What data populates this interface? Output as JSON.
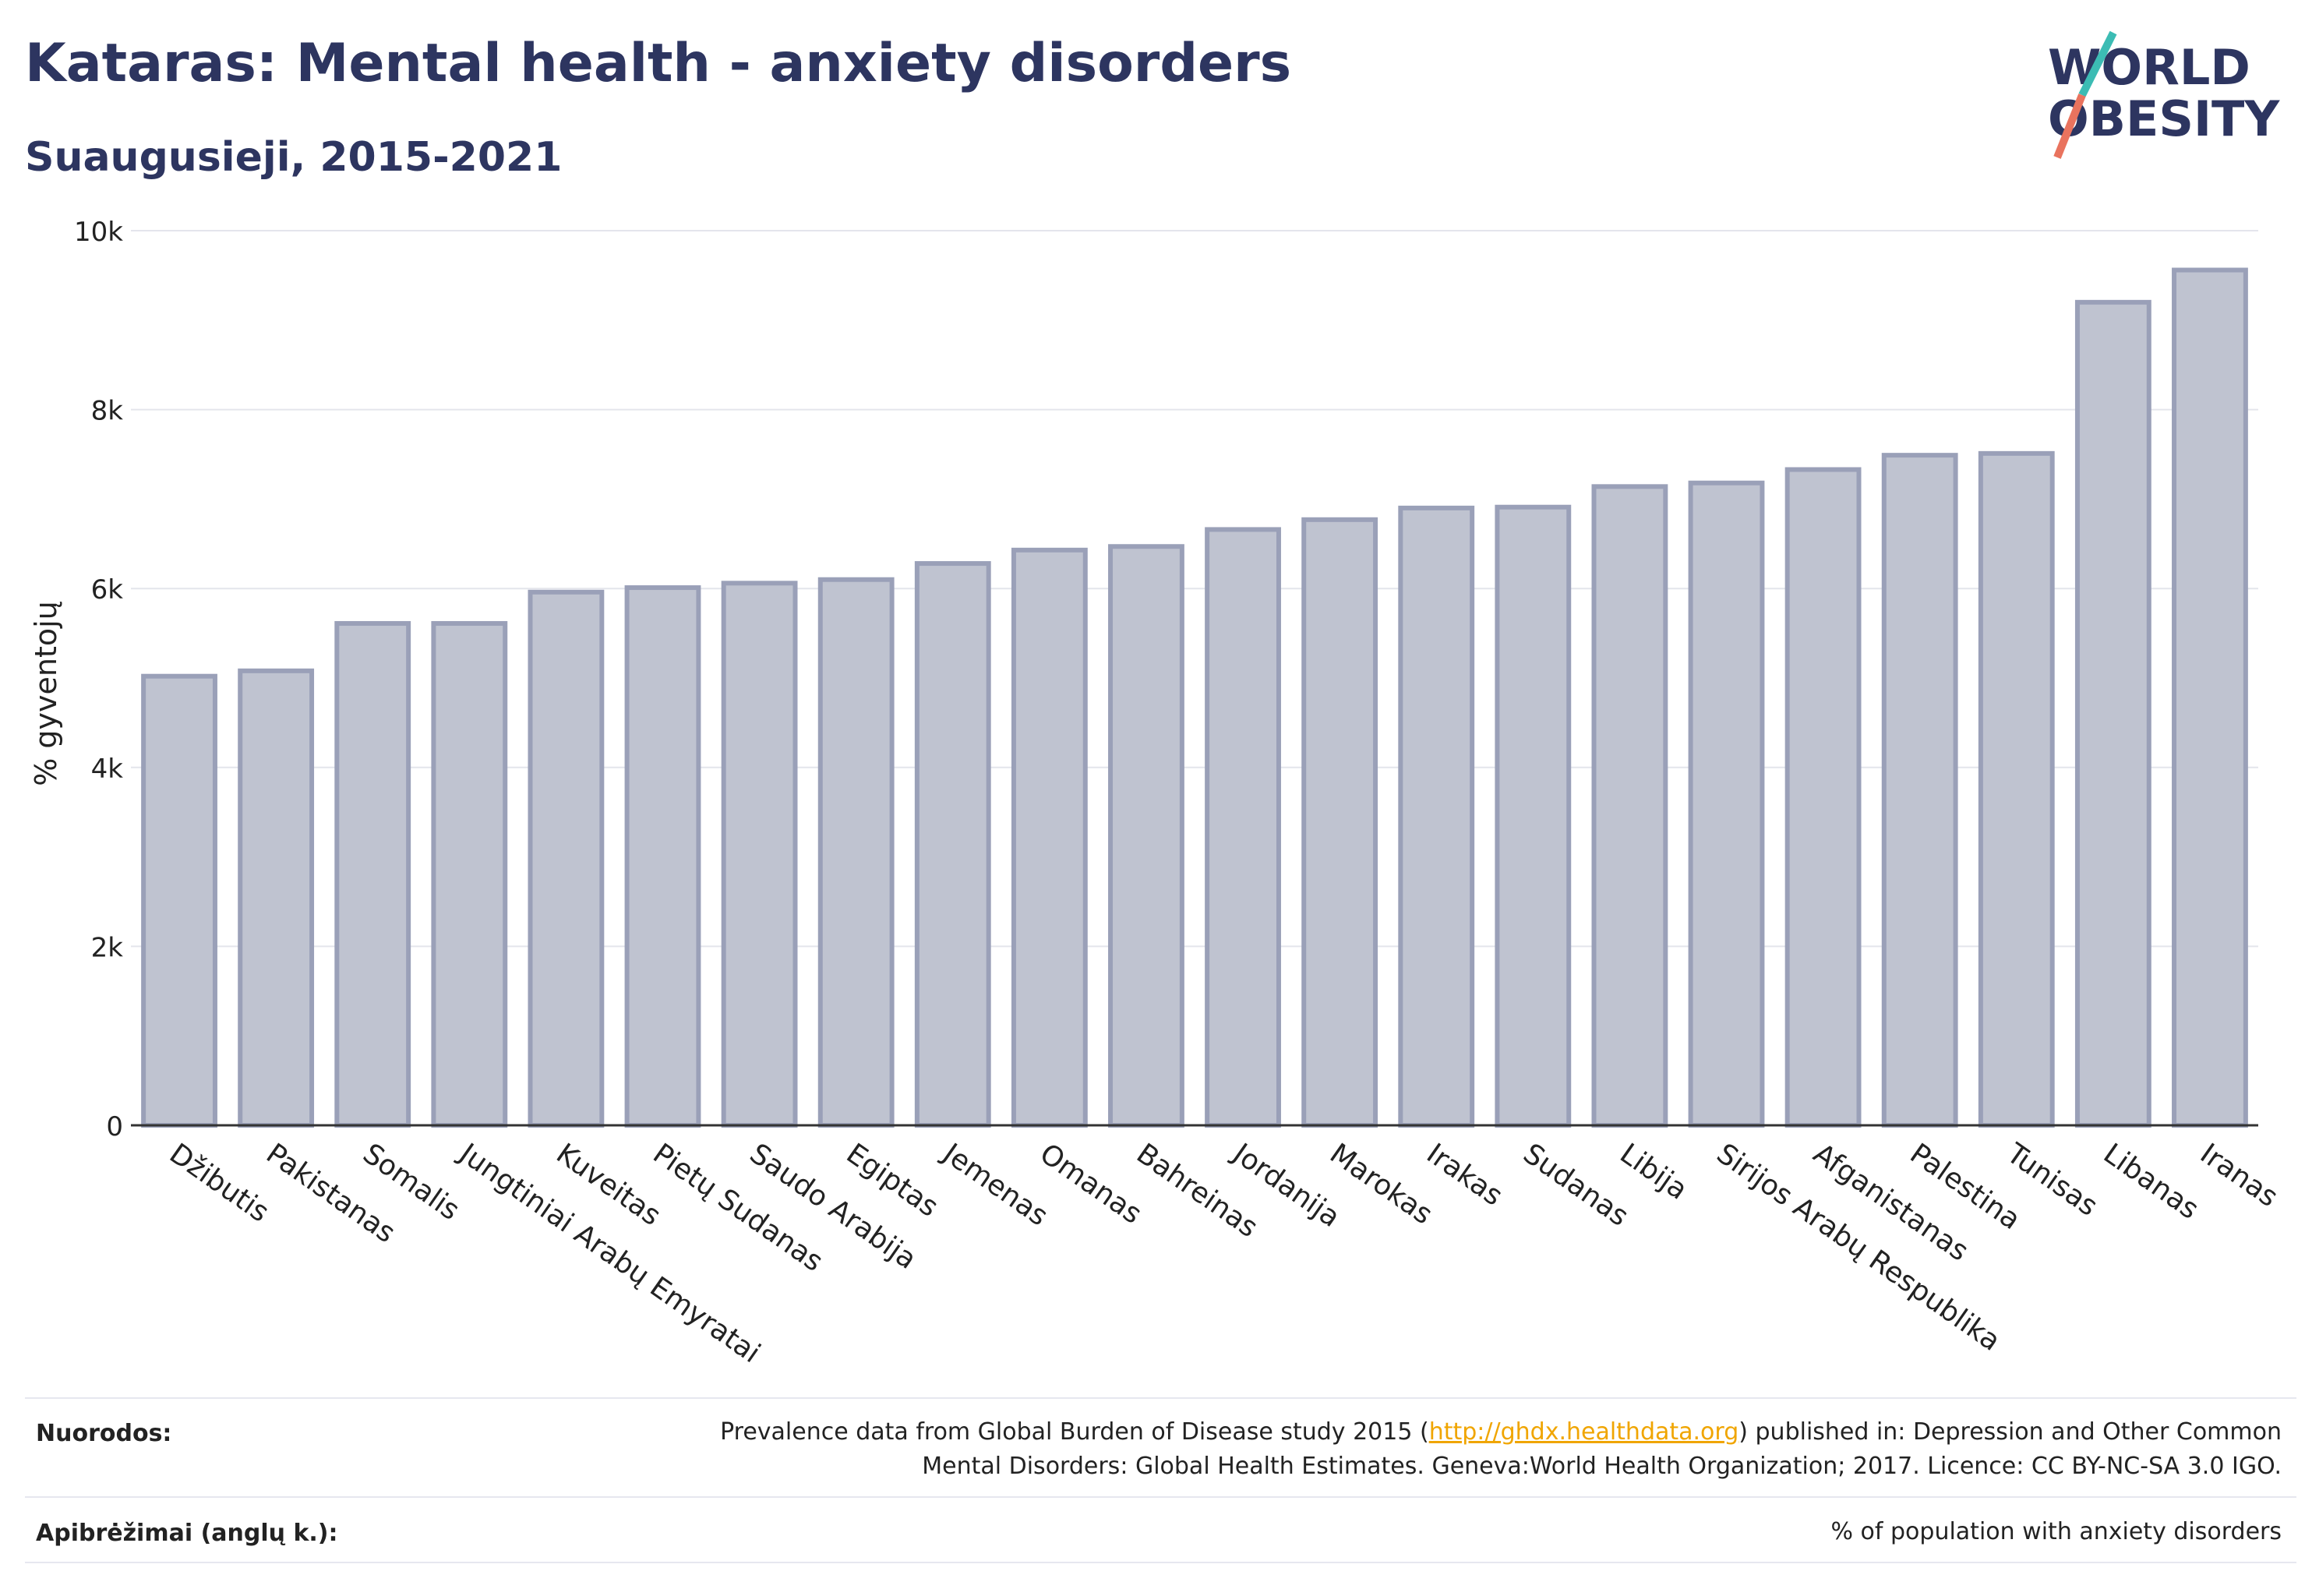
{
  "header": {
    "title": "Kataras: Mental health - anxiety disorders",
    "subtitle": "Suaugusieji, 2015-2021"
  },
  "logo": {
    "line1": "WORLD",
    "line2": "OBESITY",
    "colors": {
      "text": "#2d3560",
      "slash_teal": "#3cbcb4",
      "slash_coral": "#e9735e"
    }
  },
  "chart_data": {
    "type": "bar",
    "ylabel": "% gyventojų",
    "xlabel": "",
    "ylim": [
      0,
      10000
    ],
    "yticks": [
      {
        "value": 0,
        "label": "0"
      },
      {
        "value": 2000,
        "label": "2k"
      },
      {
        "value": 4000,
        "label": "4k"
      },
      {
        "value": 6000,
        "label": "6k"
      },
      {
        "value": 8000,
        "label": "8k"
      },
      {
        "value": 10000,
        "label": "10k"
      }
    ],
    "grid": true,
    "bar_color": "#bfc3d0",
    "bar_edge_color": "#9aa0b8",
    "categories": [
      "Džibutis",
      "Pakistanas",
      "Somalis",
      "Jungtiniai Arabų Emyratai",
      "Kuveitas",
      "Pietų Sudanas",
      "Saudo Arabija",
      "Egiptas",
      "Jemenas",
      "Omanas",
      "Bahreinas",
      "Jordanija",
      "Marokas",
      "Irakas",
      "Sudanas",
      "Libija",
      "Sirijos Arabų Respublika",
      "Afganistanas",
      "Palestina",
      "Tunisas",
      "Libanas",
      "Iranas"
    ],
    "values": [
      5020,
      5080,
      5610,
      5610,
      5960,
      6010,
      6060,
      6100,
      6280,
      6430,
      6470,
      6660,
      6770,
      6900,
      6910,
      7140,
      7180,
      7330,
      7490,
      7510,
      9200,
      9560
    ]
  },
  "footer": {
    "references_label": "Nuorodos:",
    "references_pre": "Prevalence data from Global Burden of Disease study 2015 (",
    "references_link": "http://ghdx.healthdata.org",
    "references_post": ") published in: Depression and Other Common",
    "references_line2": "Mental Disorders: Global Health Estimates. Geneva:World Health Organization; 2017. Licence: CC BY-NC-SA 3.0 IGO.",
    "definitions_label": "Apibrėžimai (anglų k.):",
    "definitions_text": "% of population with anxiety disorders"
  }
}
